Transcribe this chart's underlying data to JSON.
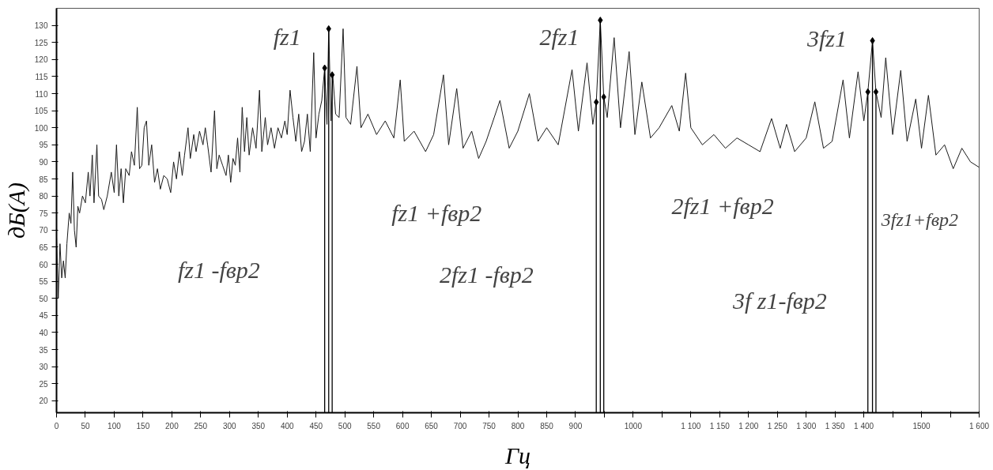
{
  "chart_data": {
    "type": "line",
    "xlabel": "Гц",
    "ylabel": "дБ(А)",
    "xlim": [
      0,
      1600
    ],
    "ylim": [
      16.5,
      135
    ],
    "xticks": [
      0,
      50,
      100,
      150,
      200,
      250,
      300,
      350,
      400,
      450,
      500,
      550,
      600,
      650,
      700,
      750,
      800,
      850,
      900,
      {
        "value": 950,
        "label": null
      },
      {
        "value": 1000,
        "label": "1000"
      },
      {
        "value": 1050,
        "label": null
      },
      {
        "value": 1100,
        "label": "1 100"
      },
      {
        "value": 1150,
        "label": "1 150"
      },
      {
        "value": 1200,
        "label": "1 200"
      },
      {
        "value": 1250,
        "label": "1 250"
      },
      {
        "value": 1300,
        "label": "1 300"
      },
      {
        "value": 1350,
        "label": "1 350"
      },
      {
        "value": 1400,
        "label": "1 400"
      },
      {
        "value": 1450,
        "label": null
      },
      {
        "value": 1500,
        "label": "1500"
      },
      {
        "value": 1550,
        "label": null
      },
      {
        "value": 1600,
        "label": "1 600"
      }
    ],
    "yticks": [
      20,
      25,
      30,
      35,
      40,
      45,
      50,
      55,
      60,
      65,
      70,
      75,
      80,
      85,
      90,
      95,
      100,
      105,
      110,
      115,
      120,
      125,
      130
    ],
    "series": [
      {
        "color": "#1a1a1a",
        "x": [
          0,
          3,
          6,
          9,
          12,
          15,
          18,
          22,
          25,
          28,
          31,
          34,
          37,
          40,
          45,
          50,
          55,
          58,
          62,
          65,
          70,
          73,
          78,
          82,
          88,
          95,
          100,
          104,
          108,
          112,
          116,
          120,
          126,
          130,
          135,
          140,
          144,
          148,
          152,
          156,
          160,
          165,
          170,
          175,
          180,
          186,
          192,
          198,
          203,
          208,
          213,
          218,
          222,
          228,
          232,
          238,
          242,
          248,
          254,
          258,
          262,
          268,
          274,
          278,
          282,
          288,
          294,
          298,
          302,
          306,
          310,
          314,
          318,
          322,
          326,
          330,
          334,
          340,
          346,
          352,
          356,
          362,
          366,
          372,
          378,
          384,
          390,
          396,
          400,
          405,
          410,
          415,
          420,
          425,
          430,
          435,
          440,
          446,
          450,
          455,
          460,
          465,
          469,
          472,
          476,
          479,
          484,
          490,
          497,
          502,
          510,
          521,
          528,
          540,
          555,
          570,
          585,
          596,
          603,
          620,
          640,
          654,
          671,
          680,
          694,
          705,
          720,
          732,
          745,
          769,
          785,
          800,
          820,
          835,
          850,
          870,
          894,
          905,
          920,
          930,
          936,
          943,
          949,
          955,
          967,
          978,
          993,
          1003,
          1015,
          1030,
          1045,
          1067,
          1080,
          1091,
          1100,
          1120,
          1140,
          1160,
          1180,
          1200,
          1220,
          1240,
          1255,
          1266,
          1280,
          1300,
          1315,
          1330,
          1345,
          1364,
          1375,
          1390,
          1400,
          1407,
          1415,
          1421,
          1430,
          1438,
          1450,
          1464,
          1475,
          1490,
          1500,
          1512,
          1525,
          1540,
          1555,
          1570,
          1585,
          1600
        ],
        "values": [
          68,
          50,
          66,
          56,
          61,
          56,
          66,
          75,
          72,
          87,
          70,
          65,
          77,
          75,
          80,
          78,
          87,
          80,
          92,
          78,
          95,
          80,
          79,
          76,
          80,
          87,
          81,
          95,
          80,
          88,
          78,
          88,
          86,
          93,
          89,
          106,
          88,
          89,
          100,
          102,
          89,
          95,
          84,
          88,
          82,
          86,
          85,
          81,
          90,
          85,
          93,
          86,
          92,
          100,
          91,
          98,
          93,
          99,
          95,
          100,
          95,
          87,
          105,
          88,
          92,
          89,
          86,
          92,
          84,
          91,
          89,
          97,
          87,
          106,
          93,
          103,
          92,
          100,
          94,
          111,
          93,
          103,
          95,
          100,
          94,
          100,
          97,
          102,
          98,
          111,
          103,
          96,
          104,
          93,
          96,
          104,
          93,
          122,
          97,
          104,
          108,
          117.5,
          101,
          129,
          102,
          115.5,
          104,
          103,
          129,
          103,
          101,
          118,
          100,
          104,
          98,
          102,
          97,
          114,
          96,
          99,
          93,
          98,
          115.5,
          95,
          111.5,
          94,
          99,
          91,
          96,
          108,
          94,
          99,
          110,
          96,
          100,
          95,
          117,
          99,
          119,
          101,
          107.5,
          131.5,
          109,
          103,
          126.4,
          100,
          122.3,
          98,
          113.4,
          97,
          100,
          106.5,
          99,
          116,
          100,
          95,
          98,
          94,
          97,
          95,
          93,
          102.7,
          94,
          101,
          93,
          97,
          107.6,
          94,
          96,
          114,
          97,
          116.4,
          102,
          110.5,
          125.5,
          110.5,
          103,
          120.5,
          98,
          116.8,
          96,
          108.4,
          94,
          109.5,
          92,
          95,
          88,
          94,
          90,
          88.4
        ]
      },
      {
        "type": "lollipop",
        "color": "#000000",
        "marker": "diamond",
        "x": [
          465,
          472,
          478,
          936,
          943,
          949,
          1407,
          1415,
          1421
        ],
        "values": [
          117.5,
          129,
          115.5,
          107.5,
          131.5,
          109,
          110.5,
          125.5,
          110.5
        ]
      }
    ],
    "annotations": [
      "fz1",
      "2fz1",
      "3fz1",
      "fz1 -fвр2",
      "fz1 +fвр2",
      "2fz1 -fвр2",
      "2fz1 +fвр2",
      "3fz1+fвр2",
      "3f z1-fвр2"
    ]
  }
}
